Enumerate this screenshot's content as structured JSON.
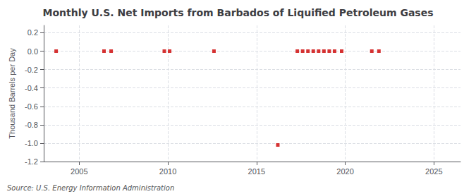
{
  "chart_data": {
    "type": "scatter",
    "title": "Monthly U.S. Net Imports from Barbados of Liquified Petroleum Gases",
    "ylabel": "Thousand Barrels per Day",
    "source": "Source: U.S. Energy Information Administration",
    "x": [
      2003.7,
      2006.4,
      2006.8,
      2009.8,
      2010.1,
      2012.6,
      2016.2,
      2017.3,
      2017.6,
      2017.9,
      2018.2,
      2018.5,
      2018.8,
      2019.1,
      2019.4,
      2019.8,
      2021.5,
      2021.9
    ],
    "values": [
      0.0,
      0.0,
      0.0,
      0.0,
      0.0,
      0.0,
      -1.02,
      0.0,
      0.0,
      0.0,
      0.0,
      0.0,
      0.0,
      0.0,
      0.0,
      0.0,
      0.0,
      0.0
    ],
    "color": "#cc0000",
    "marker": "square",
    "xlim": [
      2003.0,
      2026.5
    ],
    "xticks": [
      2005,
      2010,
      2015,
      2020,
      2025
    ],
    "ylim": [
      -1.2,
      0.28
    ],
    "yticks": [
      0.2,
      {
        "value": 0.0,
        "label": "0.0"
      },
      -0.2,
      -0.4,
      -0.6,
      -0.8,
      {
        "value": -1.0,
        "label": "-1.0"
      },
      -1.2
    ],
    "grid": true
  }
}
